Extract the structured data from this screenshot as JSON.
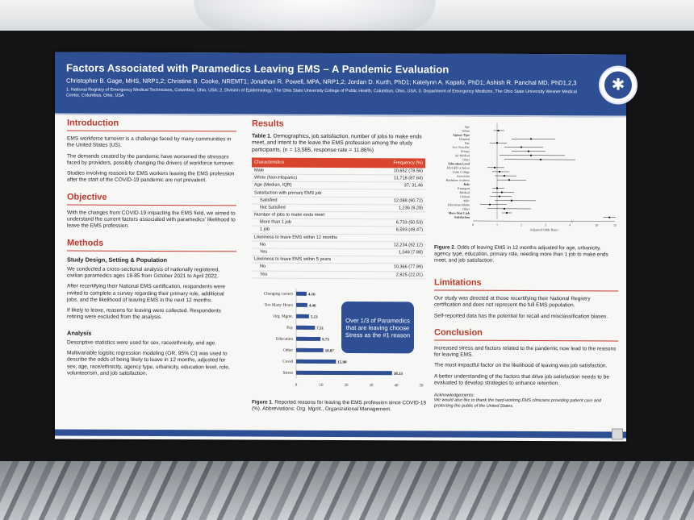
{
  "poster": {
    "title": "Factors Associated with Paramedics Leaving EMS – A Pandemic Evaluation",
    "authors": "Christopher B. Gage, MHS, NRP1,2; Christine B. Cooke, NREMT1; Jonathan R. Powell, MPA, NRP1,2; Jordan D. Kurth, PhD1; Katelynn A. Kapalo, PhD1; Ashish R. Panchal MD, PhD1,2,3",
    "affiliations": "1. National Registry of Emergency Medical Technicians, Columbus, Ohio, USA; 2. Division of Epidemiology, The Ohio State University College of Public Health, Columbus, Ohio, USA; 3. Department of Emergency Medicine, The Ohio State University Wexner Medical Center, Columbus, Ohio, USA",
    "logo_icon": "star-of-life-icon",
    "colors": {
      "header": "#2f4f94",
      "accent": "#c0392b",
      "table_header": "#d8442c"
    }
  },
  "intro": {
    "heading": "Introduction",
    "p1": "EMS workforce turnover is a challenge faced by many communities in the United States (US).",
    "p2": "The demands created by the pandemic have worsened the stressors faced by providers, possibly changing the drivers of workforce turnover.",
    "p3": "Studies involving reasons for EMS workers leaving the EMS profession after the start of the COVID-19 pandemic are not prevalent."
  },
  "objective": {
    "heading": "Objective",
    "p1": "With the changes from COVID-19 impacting the EMS field, we aimed to understand the current factors associated with paramedics' likelihood to leave the EMS profession."
  },
  "methods": {
    "heading": "Methods",
    "sub1": "Study Design, Setting & Population",
    "p1": "We conducted a cross-sectional analysis of nationally registered, civilian paramedics ages 18-85 from October 2021 to April 2022.",
    "p2": "After recertifying their National EMS certification, respondents were invited to complete a survey regarding their primary role, additional jobs, and the likelihood of leaving EMS in the next 12 months.",
    "p3": "If likely to leave, reasons for leaving were collected. Respondents retiring were excluded from the analysis.",
    "sub2": "Analysis",
    "p4": "Descriptive statistics were used for sex, race/ethnicity, and age.",
    "p5": "Multivariable logistic regression modeling (OR, 95% CI) was used to describe the odds of being likely to leave in 12 months, adjusted for sex, age, race/ethnicity, agency type, urbanicity, education level, role, volunteerism, and job satisfaction."
  },
  "results": {
    "heading": "Results",
    "table_caption_bold": "Table 1",
    "table_caption": ". Demographics, job satisfaction, number of jobs to make ends meet, and intent to the leave the EMS profession among the study participants. (n = 13,585, response rate = 11.86%)",
    "table_head": {
      "col1": "Characteristics",
      "col2": "Frequency (%)"
    },
    "rows": [
      {
        "label": "Male",
        "value": "10,652 (78.56)",
        "indent": false
      },
      {
        "label": "White (Non-Hispanic)",
        "value": "11,718 (87.64)",
        "indent": false
      },
      {
        "label": "Age (Median, IQR)",
        "value": "37, 31,46",
        "indent": false
      },
      {
        "label": "Satisfaction with primary EMS job",
        "value": "",
        "indent": false
      },
      {
        "label": "Satisfied",
        "value": "12,088 (90.72)",
        "indent": true
      },
      {
        "label": "Not Satisfied",
        "value": "1,236 (9.28)",
        "indent": true
      },
      {
        "label": "Number of jobs to make ends meet",
        "value": "",
        "indent": false
      },
      {
        "label": "More than 1 job",
        "value": "6,733 (50.53)",
        "indent": true
      },
      {
        "label": "1 job",
        "value": "6,593 (49.47)",
        "indent": true
      },
      {
        "label": "Likeliness to leave EMS within 12 months",
        "value": "",
        "indent": false
      },
      {
        "label": "No",
        "value": "12,234 (92.12)",
        "indent": true
      },
      {
        "label": "Yes",
        "value": "1,046 (7.88)",
        "indent": true
      },
      {
        "label": "Likeliness to leave EMS within 5 years",
        "value": "",
        "indent": false
      },
      {
        "label": "No",
        "value": "10,366 (77.99)",
        "indent": true
      },
      {
        "label": "Yes",
        "value": "2,925 (22.01)",
        "indent": true
      }
    ],
    "callout": "Over 1/3 of Paramedics that are leaving choose Stress as the #1 reason",
    "fig1_caption_bold": "Figure 1",
    "fig1_caption": ". Reported reasons for leaving the EMS profession since COVID-19 (%). Abbreviations: Org. Mgmt., Organizational Management.",
    "fig2_caption_bold": "Figure 2",
    "fig2_caption": ". Odds of leaving EMS in 12 months adjusted for age, urbanicity, agency type, education, primary role, needing more than 1 job to make ends meet, and job satisfaction."
  },
  "limitations": {
    "heading": "Limitations",
    "p1": "Our study was directed at those recertifying their National Registry certification and does not represent the full EMS population.",
    "p2": "Self-reported data has the potential for recall and misclassification biases."
  },
  "conclusion": {
    "heading": "Conclusion",
    "p1": "Increased stress and factors related to the pandemic now lead to the reasons for leaving EMS.",
    "p2": "The most impactful factor on the likelihood of leaving was job satisfaction.",
    "p3": "A better understanding of the factors that drive job satisfaction needs to be evaluated to develop strategies to enhance retention.",
    "ack_heading": "Acknowledgements:",
    "ack": "We would also like to thank the hard-working EMS clinicians providing patient care and protecting the public of the United States."
  },
  "chart_data": [
    {
      "type": "bar",
      "orientation": "horizontal",
      "categories": [
        "Changing careers",
        "Too Many Hours",
        "Org. Mgmt.",
        "Pay",
        "Education",
        "Other",
        "Covid",
        "Stress"
      ],
      "values": [
        4.16,
        4.46,
        5.13,
        7.51,
        9.73,
        10.87,
        15.9,
        38.33
      ],
      "labels": [
        "4.16",
        "4.46",
        "5.13",
        "7.51",
        "9.73",
        "10.87",
        "15.90",
        "38.33"
      ],
      "xticks": [
        0,
        10,
        20,
        30,
        40,
        50
      ],
      "xlim": [
        0,
        50
      ],
      "color": "#2f4f94"
    },
    {
      "type": "scatter",
      "style": "forest",
      "xlabel": "Adjusted Odds Ratio",
      "xticks": [
        "0",
        "1",
        "2",
        "3",
        "4",
        "10",
        "15"
      ],
      "rows": [
        {
          "label": "Age",
          "header": false,
          "or": null,
          "lo": null,
          "hi": null
        },
        {
          "label": "Urban",
          "header": false,
          "or": 1.05,
          "lo": 0.85,
          "hi": 1.3
        },
        {
          "label": "Agency Type",
          "header": true,
          "or": null,
          "lo": null,
          "hi": null
        },
        {
          "label": "Hospital",
          "header": false,
          "or": 2.4,
          "lo": 1.6,
          "hi": 3.4
        },
        {
          "label": "Fire",
          "header": false,
          "or": 1.0,
          "lo": 0.7,
          "hi": 1.4
        },
        {
          "label": "Gov Non-Fire",
          "header": false,
          "or": 2.0,
          "lo": 1.3,
          "hi": 2.9
        },
        {
          "label": "Private",
          "header": false,
          "or": 2.3,
          "lo": 1.6,
          "hi": 3.0
        },
        {
          "label": "Air Medical",
          "header": false,
          "or": 2.4,
          "lo": 1.1,
          "hi": 3.8
        },
        {
          "label": "Other",
          "header": false,
          "or": 2.8,
          "lo": 1.3,
          "hi": 4.2
        },
        {
          "label": "Education Level",
          "header": true,
          "or": null,
          "lo": null,
          "hi": null
        },
        {
          "label": "HS/GED or below",
          "header": false,
          "or": 0.9,
          "lo": 0.6,
          "hi": 1.3
        },
        {
          "label": "Some College",
          "header": false,
          "or": 1.1,
          "lo": 0.8,
          "hi": 1.5
        },
        {
          "label": "Associates",
          "header": false,
          "or": 1.3,
          "lo": 0.9,
          "hi": 1.8
        },
        {
          "label": "Bachelors or above",
          "header": false,
          "or": 1.5,
          "lo": 1.0,
          "hi": 2.2
        },
        {
          "label": "Role",
          "header": true,
          "or": null,
          "lo": null,
          "hi": null
        },
        {
          "label": "Emergent",
          "header": false,
          "or": 1.0,
          "lo": 0.8,
          "hi": 1.3
        },
        {
          "label": "Medical",
          "header": false,
          "or": 1.2,
          "lo": 0.8,
          "hi": 1.7
        },
        {
          "label": "Clinical",
          "header": false,
          "or": 1.1,
          "lo": 0.7,
          "hi": 1.6
        },
        {
          "label": "Mil+",
          "header": false,
          "or": 1.6,
          "lo": 0.9,
          "hi": 2.6
        },
        {
          "label": "Education/Admin",
          "header": false,
          "or": 0.7,
          "lo": 0.3,
          "hi": 1.4
        },
        {
          "label": "Other",
          "header": false,
          "or": 1.3,
          "lo": 0.6,
          "hi": 2.4
        },
        {
          "label": "More than 1 job",
          "header": true,
          "or": 1.4,
          "lo": 1.2,
          "hi": 1.6
        },
        {
          "label": "Satisfaction",
          "header": true,
          "or": 13.5,
          "lo": 11.8,
          "hi": 15.2
        }
      ]
    }
  ]
}
